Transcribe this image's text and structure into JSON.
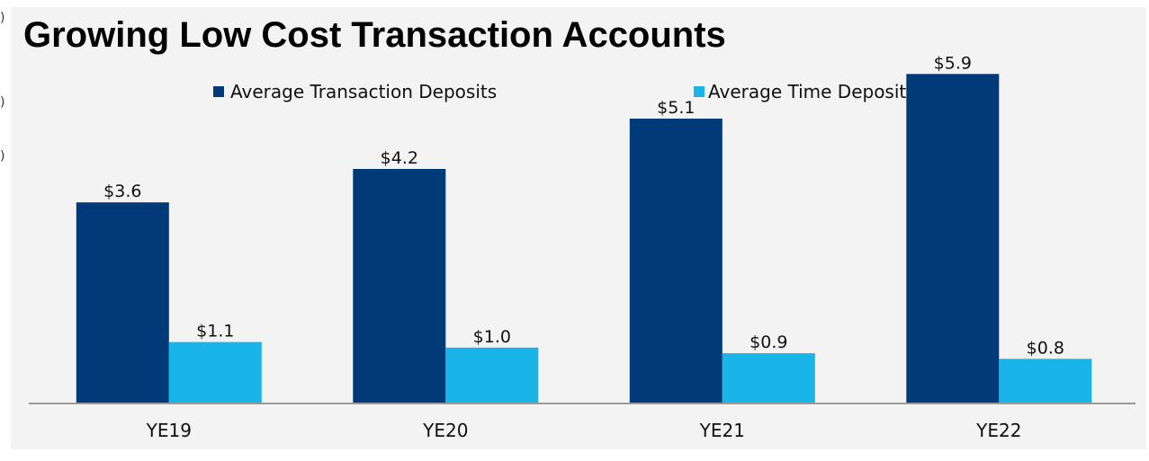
{
  "chart_data": {
    "type": "bar",
    "title": "Growing Low Cost Transaction Accounts",
    "xlabel": "",
    "ylabel": "",
    "categories": [
      "YE19",
      "YE20",
      "YE21",
      "YE22"
    ],
    "series": [
      {
        "name": "Average Transaction Deposits",
        "values": [
          3.6,
          4.2,
          5.1,
          5.9
        ],
        "labels": [
          "$3.6",
          "$4.2",
          "$5.1",
          "$5.9"
        ],
        "color": "#003a78"
      },
      {
        "name": "Average Time Deposits",
        "values": [
          1.1,
          1.0,
          0.9,
          0.8
        ],
        "labels": [
          "$1.1",
          "$1.0",
          "$0.9",
          "$0.8"
        ],
        "color": "#19b4e8"
      }
    ],
    "ylim": [
      0,
      6.5
    ],
    "grid": false,
    "legend": "top-center",
    "axis_line_color": "#999999"
  }
}
